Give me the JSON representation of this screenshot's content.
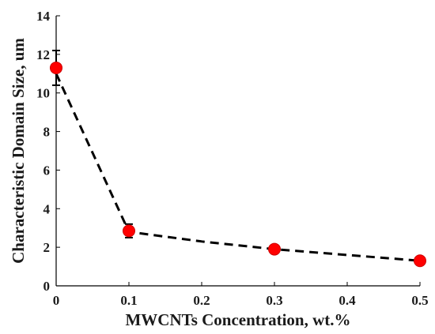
{
  "chart_data": {
    "type": "scatter",
    "xlabel": "MWCNTs Concentration, wt.%",
    "ylabel": "Characteristic Domain Size, um",
    "xlim": [
      0,
      0.5
    ],
    "ylim": [
      0,
      14
    ],
    "xticks": [
      0,
      0.1,
      0.2,
      0.3,
      0.4,
      0.5
    ],
    "xtick_labels": [
      "0",
      "0.1",
      "0.2",
      "0.3",
      "0.4",
      "0.5"
    ],
    "yticks": [
      0,
      2,
      4,
      6,
      8,
      10,
      12,
      14
    ],
    "ytick_labels": [
      "0",
      "2",
      "4",
      "6",
      "8",
      "10",
      "12",
      "14"
    ],
    "grid": false,
    "marker_color": "#ff0000",
    "line_color": "#000000",
    "series": [
      {
        "x": [
          0,
          0.1,
          0.3,
          0.5
        ],
        "y": [
          11.3,
          2.85,
          1.9,
          1.3
        ],
        "error": [
          0.9,
          0.35,
          0.2,
          0.1
        ]
      }
    ],
    "fit_curve": {
      "style": "dashed",
      "x": [
        0,
        0.1,
        0.2,
        0.3,
        0.4,
        0.5
      ],
      "y": [
        11.0,
        2.8,
        2.3,
        1.9,
        1.6,
        1.3
      ]
    }
  }
}
